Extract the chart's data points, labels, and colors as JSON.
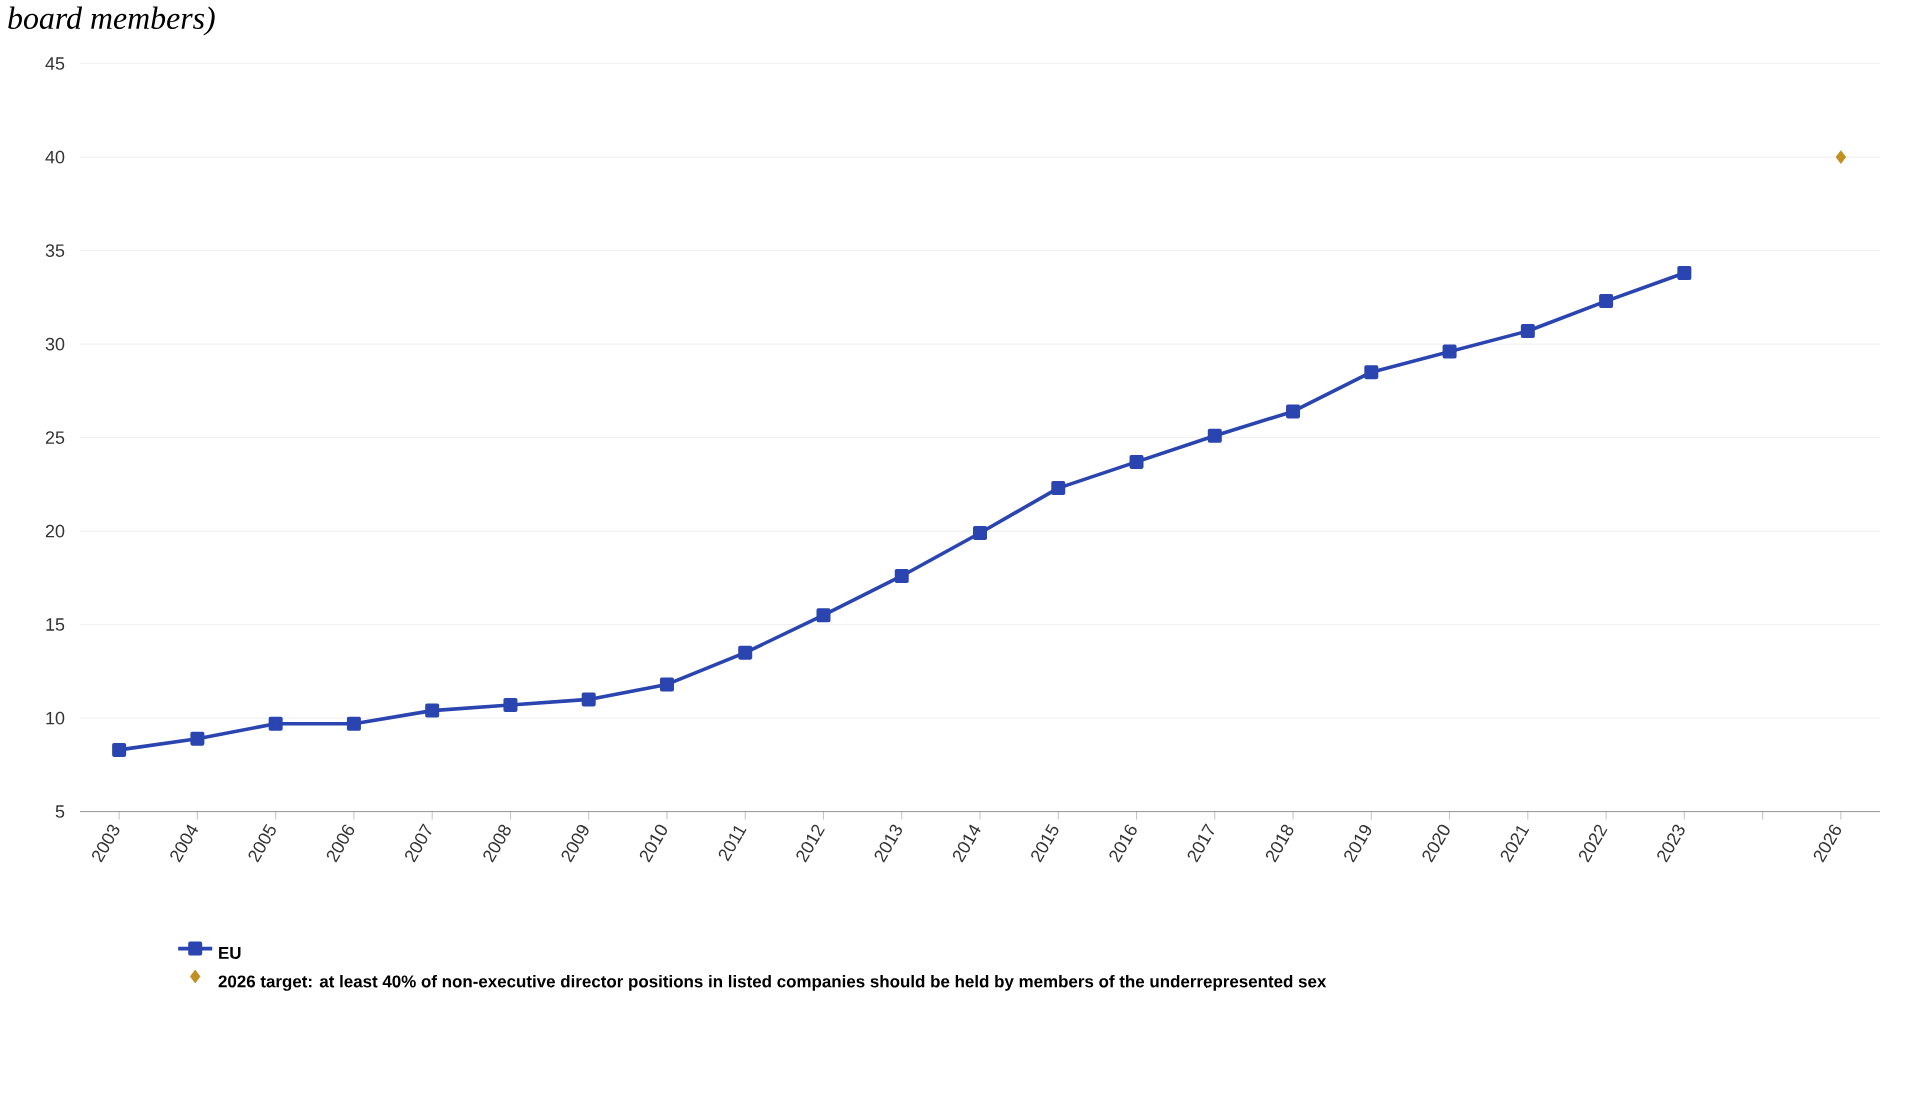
{
  "chart_data": {
    "type": "line",
    "title": "board members)",
    "categories": [
      "2003",
      "2004",
      "2005",
      "2006",
      "2007",
      "2008",
      "2009",
      "2010",
      "2011",
      "2012",
      "2013",
      "2014",
      "2015",
      "2016",
      "2017",
      "2018",
      "2019",
      "2020",
      "2021",
      "2022",
      "2023",
      null,
      "2026"
    ],
    "series": [
      {
        "name": "EU",
        "color": "#2a44b0",
        "marker": "square",
        "values": [
          8.3,
          8.9,
          9.7,
          9.7,
          10.4,
          10.7,
          11.0,
          11.8,
          13.5,
          15.5,
          17.6,
          19.9,
          22.3,
          23.7,
          25.1,
          26.4,
          28.5,
          29.6,
          30.7,
          32.3,
          33.8,
          null,
          null
        ]
      },
      {
        "name": "2026 target: at least 40% of non-executive director positions in listed companies should be held by members of the underrepresented sex",
        "type": "scatter",
        "color": "#c09020",
        "marker": "diamond",
        "values": [
          null,
          null,
          null,
          null,
          null,
          null,
          null,
          null,
          null,
          null,
          null,
          null,
          null,
          null,
          null,
          null,
          null,
          null,
          null,
          null,
          null,
          null,
          40
        ]
      }
    ],
    "ylim": [
      5,
      45
    ],
    "yticks": [
      5,
      10,
      15,
      20,
      25,
      30,
      35,
      40,
      45
    ],
    "grid": "y",
    "legend": "bottom left"
  }
}
